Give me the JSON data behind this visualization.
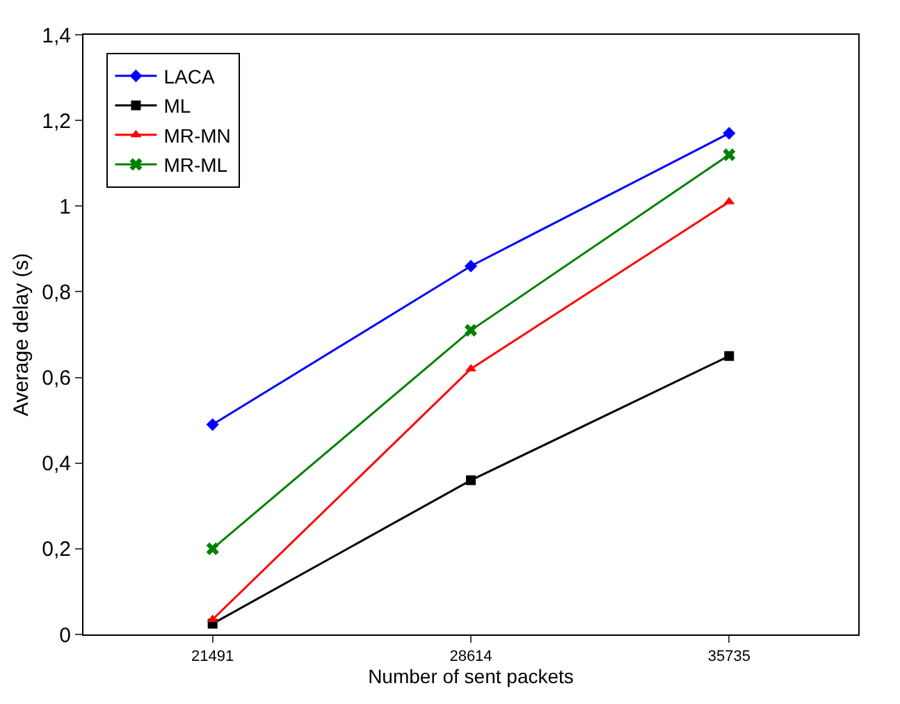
{
  "chart_data": {
    "type": "line",
    "xlabel": "Number of sent packets",
    "ylabel": "Average delay (s)",
    "categories": [
      "21491",
      "28614",
      "35735"
    ],
    "series": [
      {
        "name": "LACA",
        "color": "#0000ff",
        "marker": "diamond",
        "values": [
          0.49,
          0.86,
          1.17
        ]
      },
      {
        "name": "ML",
        "color": "#000000",
        "marker": "square",
        "values": [
          0.025,
          0.36,
          0.65
        ]
      },
      {
        "name": "MR-MN",
        "color": "#ff0000",
        "marker": "triangle",
        "values": [
          0.035,
          0.62,
          1.01
        ]
      },
      {
        "name": "MR-ML",
        "color": "#008000",
        "marker": "cross",
        "values": [
          0.2,
          0.71,
          1.12
        ]
      }
    ],
    "ylim": [
      0,
      1.4
    ],
    "yticks": [
      0,
      {
        "value": 0.2,
        "label": "0,2"
      },
      {
        "value": 0.4,
        "label": "0,4"
      },
      {
        "value": 0.6,
        "label": "0,6"
      },
      {
        "value": 0.8,
        "label": "0,8"
      },
      1,
      {
        "value": 1.2,
        "label": "1,2"
      },
      {
        "value": 1.4,
        "label": "1,4"
      }
    ],
    "grid": false,
    "legend": "top left",
    "line_style": "solid"
  }
}
